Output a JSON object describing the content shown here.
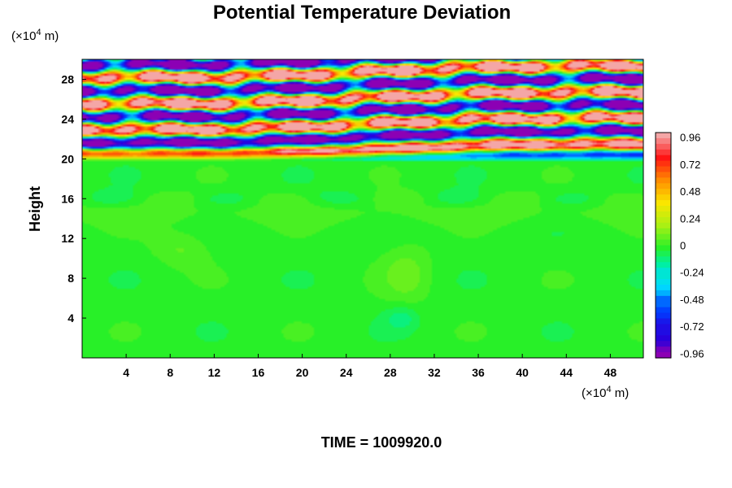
{
  "chart_data": {
    "type": "heatmap",
    "title": "Potential Temperature Deviation",
    "ylabel": "Height",
    "y_unit_label": "(×10",
    "y_unit_exp": "4",
    "y_unit_tail": " m)",
    "x_unit_label": "(×10",
    "x_unit_exp": "4",
    "x_unit_tail": " m)",
    "x_ticks": [
      "4",
      "8",
      "12",
      "16",
      "20",
      "24",
      "28",
      "32",
      "36",
      "40",
      "44",
      "48"
    ],
    "y_ticks": [
      "4",
      "8",
      "12",
      "16",
      "20",
      "24",
      "28"
    ],
    "xlim": [
      0,
      51
    ],
    "ylim": [
      0,
      30
    ],
    "colorbar": {
      "labels": [
        "0.96",
        "0.72",
        "0.48",
        "0.24",
        "0",
        "-0.24",
        "-0.48",
        "-0.72",
        "-0.96"
      ],
      "vmin": -1.0,
      "vmax": 1.0
    },
    "footer": "TIME = 1009920.0"
  },
  "colors": {
    "pos_high": "#f4a6a6",
    "zero": "#30f030",
    "neg_high": "#8c00b4"
  }
}
